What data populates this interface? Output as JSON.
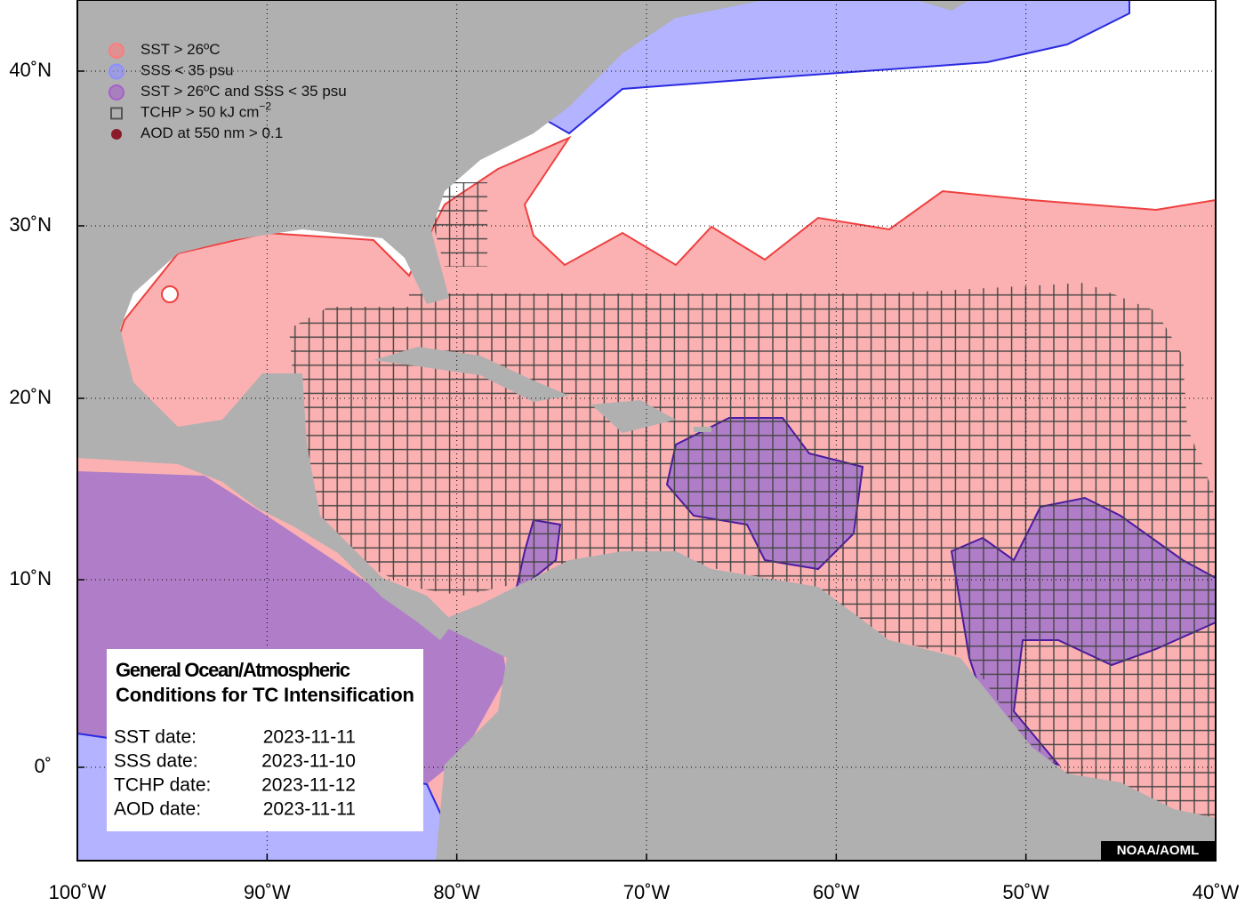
{
  "chart_data": {
    "type": "map",
    "xlim": [
      -100,
      -40
    ],
    "ylim": [
      -5,
      44.5
    ],
    "xticks": [
      {
        "value": -100,
        "label": "100˚W"
      },
      {
        "value": -90,
        "label": "90˚W"
      },
      {
        "value": -80,
        "label": "80˚W"
      },
      {
        "value": -70,
        "label": "70˚W"
      },
      {
        "value": -60,
        "label": "60˚W"
      },
      {
        "value": -50,
        "label": "50˚W"
      },
      {
        "value": -40,
        "label": "40˚W"
      }
    ],
    "yticks": [
      {
        "value": 0,
        "label": "0˚"
      },
      {
        "value": 10,
        "label": "10˚N"
      },
      {
        "value": 20,
        "label": "20˚N"
      },
      {
        "value": 30,
        "label": "30˚N"
      },
      {
        "value": 40,
        "label": "40˚N"
      }
    ],
    "grid": true,
    "legend": [
      {
        "label": "SST > 26ºC",
        "color": "#ff7b7b"
      },
      {
        "label": "SSS < 35 psu",
        "color": "#8f8fff"
      },
      {
        "label": "SST > 26ºC and SSS < 35 psu",
        "color": "#a560c8"
      },
      {
        "label": "TCHP > 50 kJ cm",
        "superscript": "−2",
        "color": "#555555"
      },
      {
        "label": "AOD at 550 nm > 0.1",
        "color": "#8b1a2a"
      }
    ],
    "info": {
      "title": [
        "General Ocean/Atmospheric",
        "Conditions for TC Intensification"
      ],
      "rows": [
        [
          "SST date:",
          "2023-11-11"
        ],
        [
          "SSS date:",
          "2023-11-10"
        ],
        [
          "TCHP date:",
          "2023-11-12"
        ],
        [
          "AOD date:",
          "2023-11-11"
        ]
      ]
    },
    "credit": "NOAA/AOML"
  }
}
